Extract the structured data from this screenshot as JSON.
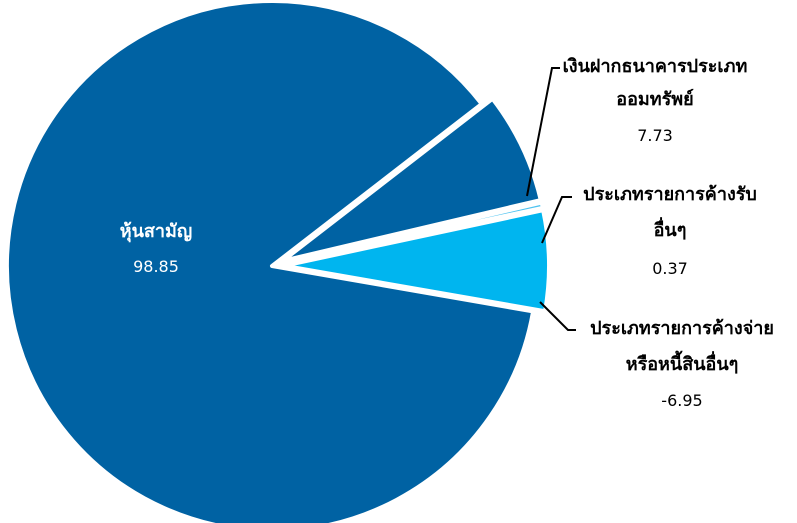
{
  "chart_data": {
    "type": "pie",
    "title": "",
    "slices": [
      {
        "label": "หุ้นสามัญ",
        "value": 98.85,
        "display": "98.85",
        "color": "#0062A3"
      },
      {
        "label_lines": [
          "เงินฝากธนาคารประเภท",
          "ออมทรัพย์"
        ],
        "value": 7.73,
        "display": "7.73",
        "color": "#0062A3"
      },
      {
        "label_lines": [
          "ประเภทรายการค้างรับ",
          "อื่นๆ"
        ],
        "value": 0.37,
        "display": "0.37",
        "color": "#4EC3F0"
      },
      {
        "label_lines": [
          "ประเภทรายการค้างจ่าย",
          "หรือหนี้สินอื่นๆ"
        ],
        "value": -6.95,
        "display": "-6.95",
        "color": "#00B5EF"
      }
    ],
    "legend": "none"
  }
}
